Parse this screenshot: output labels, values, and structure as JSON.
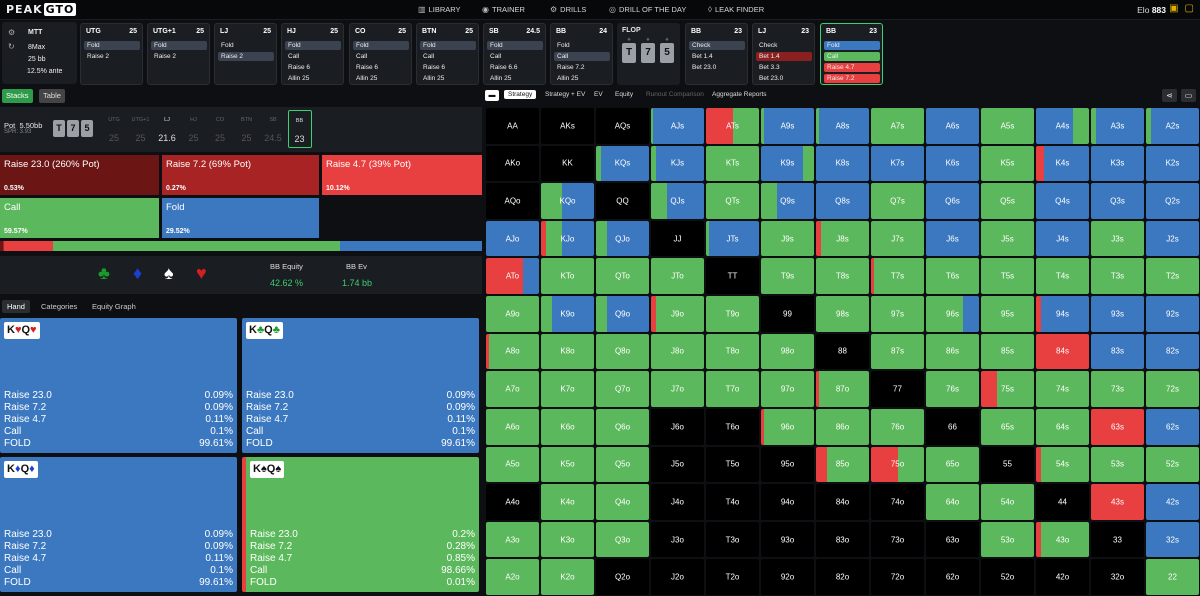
{
  "nav": {
    "logo_main": "PEAK",
    "logo_gto": "GTO",
    "items": [
      {
        "icon": "book-icon",
        "label": "LIBRARY"
      },
      {
        "icon": "trainer-icon",
        "label": "TRAINER"
      },
      {
        "icon": "drills-icon",
        "label": "DRILLS"
      },
      {
        "icon": "target-icon",
        "label": "DRILL OF THE DAY"
      },
      {
        "icon": "drop-icon",
        "label": "LEAK FINDER"
      }
    ],
    "elo_label": "Elo",
    "elo_value": "883"
  },
  "info": {
    "format": "MTT",
    "max": "8Max",
    "stack": "25 bb",
    "ante": "12.5% ante"
  },
  "positions": [
    {
      "name": "UTG",
      "stack": "25",
      "actions": [
        {
          "t": "Fold",
          "s": "sel"
        },
        {
          "t": "Raise 2",
          "s": ""
        }
      ]
    },
    {
      "name": "UTG+1",
      "stack": "25",
      "actions": [
        {
          "t": "Fold",
          "s": "sel"
        },
        {
          "t": "Raise 2",
          "s": ""
        }
      ]
    },
    {
      "name": "LJ",
      "stack": "25",
      "actions": [
        {
          "t": "Fold",
          "s": ""
        },
        {
          "t": "Raise 2",
          "s": "sel"
        }
      ]
    },
    {
      "name": "HJ",
      "stack": "25",
      "actions": [
        {
          "t": "Fold",
          "s": "sel"
        },
        {
          "t": "Call",
          "s": ""
        },
        {
          "t": "Raise 6",
          "s": ""
        },
        {
          "t": "Allin 25",
          "s": ""
        }
      ]
    },
    {
      "name": "CO",
      "stack": "25",
      "actions": [
        {
          "t": "Fold",
          "s": "sel"
        },
        {
          "t": "Call",
          "s": ""
        },
        {
          "t": "Raise 6",
          "s": ""
        },
        {
          "t": "Allin 25",
          "s": ""
        }
      ]
    },
    {
      "name": "BTN",
      "stack": "25",
      "actions": [
        {
          "t": "Fold",
          "s": "sel"
        },
        {
          "t": "Call",
          "s": ""
        },
        {
          "t": "Raise 6",
          "s": ""
        },
        {
          "t": "Allin 25",
          "s": ""
        }
      ]
    },
    {
      "name": "SB",
      "stack": "24.5",
      "actions": [
        {
          "t": "Fold",
          "s": "sel"
        },
        {
          "t": "Call",
          "s": ""
        },
        {
          "t": "Raise 6.6",
          "s": ""
        },
        {
          "t": "Allin 25",
          "s": ""
        }
      ]
    },
    {
      "name": "BB",
      "stack": "24",
      "actions": [
        {
          "t": "Fold",
          "s": ""
        },
        {
          "t": "Call",
          "s": "sel"
        },
        {
          "t": "Raise 7.2",
          "s": ""
        },
        {
          "t": "Allin 25",
          "s": ""
        }
      ]
    }
  ],
  "flop": {
    "label": "FLOP",
    "cards": [
      "T",
      "7",
      "5"
    ]
  },
  "post": [
    {
      "name": "BB",
      "stack": "23",
      "actions": [
        {
          "t": "Check",
          "s": "sel"
        },
        {
          "t": "Bet 1.4",
          "s": ""
        },
        {
          "t": "Bet 23.0",
          "s": ""
        }
      ]
    },
    {
      "name": "LJ",
      "stack": "23",
      "actions": [
        {
          "t": "Check",
          "s": ""
        },
        {
          "t": "Bet 1.4",
          "s": "selr"
        },
        {
          "t": "Bet 3.3",
          "s": ""
        },
        {
          "t": "Bet 23.0",
          "s": ""
        }
      ]
    },
    {
      "name": "BB",
      "stack": "23",
      "actions": [
        {
          "t": "Fold",
          "s": "blue"
        },
        {
          "t": "Call",
          "s": "green"
        },
        {
          "t": "Raise 4.7",
          "s": "red"
        },
        {
          "t": "Raise 7.2",
          "s": "red"
        },
        {
          "t": "Raise 23.0",
          "s": "red"
        }
      ]
    }
  ],
  "left_tabs": {
    "stacks": "Stacks",
    "table": "Table"
  },
  "pot": {
    "label": "Pot",
    "value": "5.50bb",
    "spr": "SPR: 3.93",
    "board": [
      "T",
      "7",
      "5"
    ],
    "seats": [
      {
        "n": "UTG",
        "v": "25"
      },
      {
        "n": "UTG+1",
        "v": "25"
      },
      {
        "n": "LJ",
        "v": "21.6"
      },
      {
        "n": "HJ",
        "v": "25"
      },
      {
        "n": "CO",
        "v": "25"
      },
      {
        "n": "BTN",
        "v": "25"
      },
      {
        "n": "SB",
        "v": "24.5"
      },
      {
        "n": "BB",
        "v": "23"
      }
    ]
  },
  "strategy": [
    {
      "label": "Raise 23.0 (260% Pot)",
      "pct": "0.53%",
      "color": "#6b1515"
    },
    {
      "label": "Raise 7.2 (69% Pot)",
      "pct": "0.27%",
      "color": "#a82323"
    },
    {
      "label": "Raise 4.7 (39% Pot)",
      "pct": "10.12%",
      "color": "#e84040"
    },
    {
      "label": "Call",
      "pct": "59.57%",
      "color": "#5cb85c"
    },
    {
      "label": "Fold",
      "pct": "29.52%",
      "color": "#3c78c0"
    }
  ],
  "freq": [
    0.53,
    0.27,
    10.12,
    59.57,
    29.52
  ],
  "equity": {
    "eq_label": "BB Equity",
    "eq_value": "42.62 %",
    "ev_label": "BB Ev",
    "ev_value": "1.74 bb"
  },
  "hand_tabs": {
    "hand": "Hand",
    "categories": "Categories",
    "graph": "Equity Graph"
  },
  "hands": [
    {
      "r1": "K",
      "s1": "♥",
      "r2": "Q",
      "s2": "♥",
      "sc": "#d42020",
      "color": "#3c78c0",
      "rows": [
        [
          "Raise 23.0",
          "0.09%"
        ],
        [
          "Raise 7.2",
          "0.09%"
        ],
        [
          "Raise 4.7",
          "0.11%"
        ],
        [
          "Call",
          "0.1%"
        ],
        [
          "FOLD",
          "99.61%"
        ]
      ]
    },
    {
      "r1": "K",
      "s1": "♣",
      "r2": "Q",
      "s2": "♣",
      "sc": "#1a9a2a",
      "color": "#3c78c0",
      "rows": [
        [
          "Raise 23.0",
          "0.09%"
        ],
        [
          "Raise 7.2",
          "0.09%"
        ],
        [
          "Raise 4.7",
          "0.11%"
        ],
        [
          "Call",
          "0.1%"
        ],
        [
          "FOLD",
          "99.61%"
        ]
      ]
    },
    {
      "r1": "K",
      "s1": "♦",
      "r2": "Q",
      "s2": "♦",
      "sc": "#1d3fd0",
      "color": "#3c78c0",
      "rows": [
        [
          "Raise 23.0",
          "0.09%"
        ],
        [
          "Raise 7.2",
          "0.09%"
        ],
        [
          "Raise 4.7",
          "0.11%"
        ],
        [
          "Call",
          "0.1%"
        ],
        [
          "FOLD",
          "99.61%"
        ]
      ]
    },
    {
      "r1": "K",
      "s1": "♠",
      "r2": "Q",
      "s2": "♠",
      "sc": "#111111",
      "color": "#5cb85c",
      "rows": [
        [
          "Raise 23.0",
          "0.2%"
        ],
        [
          "Raise 7.2",
          "0.28%"
        ],
        [
          "Raise 4.7",
          "0.85%"
        ],
        [
          "Call",
          "98.66%"
        ],
        [
          "FOLD",
          "0.01%"
        ]
      ]
    }
  ],
  "right_tabs": [
    "Strategy",
    "Strategy + EV",
    "EV",
    "Equity",
    "Runout Comparison",
    "Aggregate Reports"
  ],
  "colors": {
    "raise_big": "#6b1515",
    "raise_mid": "#a82323",
    "raise_small": "#e84040",
    "call": "#5cb85c",
    "fold": "#3c78c0",
    "dark": "#000000"
  },
  "grid": [
    [
      "AA|",
      "AKs|",
      "AQs|",
      "AJs|g4,u96",
      "ATs|r50,g50",
      "A9s|g5,u95",
      "A8s|g5,u95",
      "A7s|g100",
      "A6s|u100",
      "A5s|g100",
      "A4s|u70,g30",
      "A3s|g10,u90",
      "A2s|g10,u90"
    ],
    [
      "AKo|",
      "KK|",
      "KQs|g10,u90",
      "KJs|g10,u90",
      "KTs|g100",
      "K9s|u80,g20",
      "K8s|u100",
      "K7s|u100",
      "K6s|u100",
      "K5s|g100",
      "K4s|r15,u85",
      "K3s|u100",
      "K2s|u100"
    ],
    [
      "AQo|",
      "KQo|g40,u60",
      "QQ|",
      "QJs|g30,u70",
      "QTs|g100",
      "Q9s|g30,u70",
      "Q8s|u100",
      "Q7s|g100",
      "Q6s|u100",
      "Q5s|g100",
      "Q4s|u100",
      "Q3s|u100",
      "Q2s|u100"
    ],
    [
      "AJo|u100",
      "KJo|r10,g30,u60",
      "QJo|g20,u80",
      "JJ|",
      "JTs|g5,u95",
      "J9s|g100",
      "J8s|r10,g90",
      "J7s|g100",
      "J6s|u100",
      "J5s|g100",
      "J4s|u100",
      "J3s|g100",
      "J2s|u100"
    ],
    [
      "ATo|r70,u30",
      "KTo|g100",
      "QTo|g100",
      "JTo|g100",
      "TT|",
      "T9s|g100",
      "T8s|g100",
      "T7s|r5,g95",
      "T6s|g100",
      "T5s|g100",
      "T4s|g100",
      "T3s|g100",
      "T2s|g100"
    ],
    [
      "A9o|g100",
      "K9o|g20,u80",
      "Q9o|g20,u80",
      "J9o|r10,g90",
      "T9o|g100",
      "99|",
      "98s|g100",
      "97s|g100",
      "96s|g70,u30",
      "95s|g100",
      "94s|r10,u90",
      "93s|u100",
      "92s|u100"
    ],
    [
      "A8o|r5,g95",
      "K8o|g100",
      "Q8o|g100",
      "J8o|g100",
      "T8o|g100",
      "98o|g100",
      "88|",
      "87s|g100",
      "86s|g100",
      "85s|g100",
      "84s|r100",
      "83s|u100",
      "82s|u100"
    ],
    [
      "A7o|g100",
      "K7o|g100",
      "Q7o|g100",
      "J7o|g100",
      "T7o|g100",
      "97o|g100",
      "87o|r5,g95",
      "77|",
      "76s|g100",
      "75s|r30,g70",
      "74s|g100",
      "73s|g100",
      "72s|g100"
    ],
    [
      "A6o|g100",
      "K6o|g100",
      "Q6o|g100",
      "J6o|",
      "T6o|",
      "96o|r5,g95",
      "86o|g100",
      "76o|g100",
      "66|",
      "65s|g100",
      "64s|g100",
      "63s|r100",
      "62s|u100"
    ],
    [
      "A5o|g100",
      "K5o|g100",
      "Q5o|g100",
      "J5o|",
      "T5o|",
      "95o|",
      "85o|r20,g80",
      "75o|r50,g50",
      "65o|g100",
      "55|",
      "54s|r10,g90",
      "53s|g100",
      "52s|g100"
    ],
    [
      "A4o|",
      "K4o|g100",
      "Q4o|g100",
      "J4o|",
      "T4o|",
      "94o|",
      "84o|",
      "74o|",
      "64o|g100",
      "54o|g100",
      "44|",
      "43s|r100",
      "42s|u100"
    ],
    [
      "A3o|g100",
      "K3o|g100",
      "Q3o|g100",
      "J3o|",
      "T3o|",
      "93o|",
      "83o|",
      "73o|",
      "63o|",
      "53o|g100",
      "43o|r10,g90",
      "33|",
      "32s|u100"
    ],
    [
      "A2o|g100",
      "K2o|g100",
      "Q2o|",
      "J2o|",
      "T2o|",
      "92o|",
      "82o|",
      "72o|",
      "62o|",
      "52o|",
      "42o|",
      "32o|",
      "22|g100"
    ]
  ]
}
